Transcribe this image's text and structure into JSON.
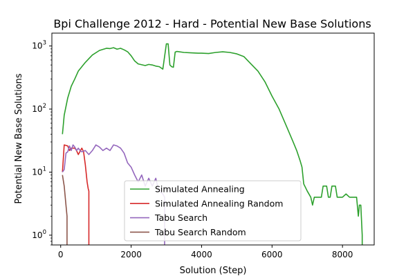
{
  "chart_data": {
    "type": "line",
    "title": "Bpi Challenge 2012 - Hard - Potential New Base Solutions",
    "xlabel": "Solution (Step)",
    "ylabel": "Potential New Base Solutions",
    "xlim": [
      -250,
      8900
    ],
    "ylim": [
      0.7,
      1600
    ],
    "yscale": "log",
    "xticks": [
      0,
      2000,
      4000,
      6000,
      8000
    ],
    "yticks": [
      {
        "value": 1,
        "base": "10",
        "exp": "0"
      },
      {
        "value": 10,
        "base": "10",
        "exp": "1"
      },
      {
        "value": 100,
        "base": "10",
        "exp": "2"
      },
      {
        "value": 1000,
        "base": "10",
        "exp": "3"
      }
    ],
    "grid": false,
    "legend_position": "bottom-center",
    "series": [
      {
        "name": "Simulated Annealing",
        "color": "#2ca02c",
        "points": [
          [
            50,
            40
          ],
          [
            100,
            80
          ],
          [
            200,
            150
          ],
          [
            300,
            230
          ],
          [
            400,
            300
          ],
          [
            500,
            400
          ],
          [
            700,
            550
          ],
          [
            900,
            720
          ],
          [
            1100,
            850
          ],
          [
            1300,
            920
          ],
          [
            1400,
            910
          ],
          [
            1500,
            940
          ],
          [
            1600,
            890
          ],
          [
            1700,
            920
          ],
          [
            1800,
            870
          ],
          [
            1900,
            810
          ],
          [
            2000,
            700
          ],
          [
            2100,
            580
          ],
          [
            2200,
            520
          ],
          [
            2400,
            490
          ],
          [
            2500,
            510
          ],
          [
            2600,
            500
          ],
          [
            2700,
            480
          ],
          [
            2800,
            470
          ],
          [
            2900,
            430
          ],
          [
            3000,
            1080
          ],
          [
            3050,
            1080
          ],
          [
            3100,
            500
          ],
          [
            3150,
            470
          ],
          [
            3200,
            460
          ],
          [
            3250,
            800
          ],
          [
            3300,
            820
          ],
          [
            3500,
            790
          ],
          [
            3700,
            780
          ],
          [
            3900,
            770
          ],
          [
            4000,
            770
          ],
          [
            4200,
            760
          ],
          [
            4400,
            790
          ],
          [
            4600,
            810
          ],
          [
            4800,
            790
          ],
          [
            5000,
            750
          ],
          [
            5200,
            680
          ],
          [
            5400,
            520
          ],
          [
            5600,
            400
          ],
          [
            5800,
            270
          ],
          [
            6000,
            160
          ],
          [
            6200,
            100
          ],
          [
            6400,
            55
          ],
          [
            6600,
            30
          ],
          [
            6700,
            22
          ],
          [
            6800,
            15
          ],
          [
            6850,
            12
          ],
          [
            6900,
            6.5
          ],
          [
            7000,
            5
          ],
          [
            7100,
            4
          ],
          [
            7150,
            3
          ],
          [
            7200,
            4
          ],
          [
            7400,
            4
          ],
          [
            7450,
            6
          ],
          [
            7550,
            6
          ],
          [
            7600,
            4
          ],
          [
            7650,
            4
          ],
          [
            7700,
            6
          ],
          [
            7800,
            6
          ],
          [
            7850,
            4
          ],
          [
            8000,
            4
          ],
          [
            8100,
            4.5
          ],
          [
            8200,
            4
          ],
          [
            8300,
            4
          ],
          [
            8400,
            4
          ],
          [
            8450,
            2
          ],
          [
            8480,
            3
          ],
          [
            8520,
            3
          ],
          [
            8560,
            1
          ]
        ]
      },
      {
        "name": "Simulated Annealing Random",
        "color": "#d62728",
        "points": [
          [
            50,
            10
          ],
          [
            100,
            27
          ],
          [
            200,
            26
          ],
          [
            250,
            22
          ],
          [
            300,
            24
          ],
          [
            400,
            24
          ],
          [
            450,
            22
          ],
          [
            500,
            19
          ],
          [
            600,
            24
          ],
          [
            650,
            21
          ],
          [
            700,
            13
          ],
          [
            750,
            7
          ],
          [
            780,
            5.5
          ],
          [
            800,
            5
          ]
        ]
      },
      {
        "name": "Tabu Search",
        "color": "#9467bd",
        "points": [
          [
            50,
            10
          ],
          [
            100,
            11
          ],
          [
            150,
            20
          ],
          [
            200,
            21
          ],
          [
            250,
            26
          ],
          [
            300,
            22
          ],
          [
            350,
            27
          ],
          [
            400,
            25
          ],
          [
            450,
            22
          ],
          [
            500,
            24
          ],
          [
            550,
            22
          ],
          [
            600,
            21
          ],
          [
            700,
            22
          ],
          [
            800,
            19
          ],
          [
            900,
            22
          ],
          [
            1000,
            27
          ],
          [
            1100,
            25
          ],
          [
            1200,
            22
          ],
          [
            1300,
            24
          ],
          [
            1400,
            22
          ],
          [
            1500,
            27
          ],
          [
            1600,
            26
          ],
          [
            1700,
            24
          ],
          [
            1800,
            20
          ],
          [
            1900,
            14
          ],
          [
            2000,
            12
          ],
          [
            2100,
            9
          ],
          [
            2200,
            7
          ],
          [
            2300,
            9
          ],
          [
            2400,
            6
          ],
          [
            2500,
            8
          ],
          [
            2600,
            6
          ],
          [
            2700,
            8
          ],
          [
            2750,
            6
          ],
          [
            2800,
            5
          ],
          [
            2900,
            4.5
          ],
          [
            2950,
            4
          ]
        ]
      },
      {
        "name": "Tabu Search Random",
        "color": "#8c564b",
        "points": [
          [
            50,
            9
          ],
          [
            100,
            6
          ],
          [
            150,
            3
          ],
          [
            180,
            2
          ]
        ]
      }
    ]
  }
}
